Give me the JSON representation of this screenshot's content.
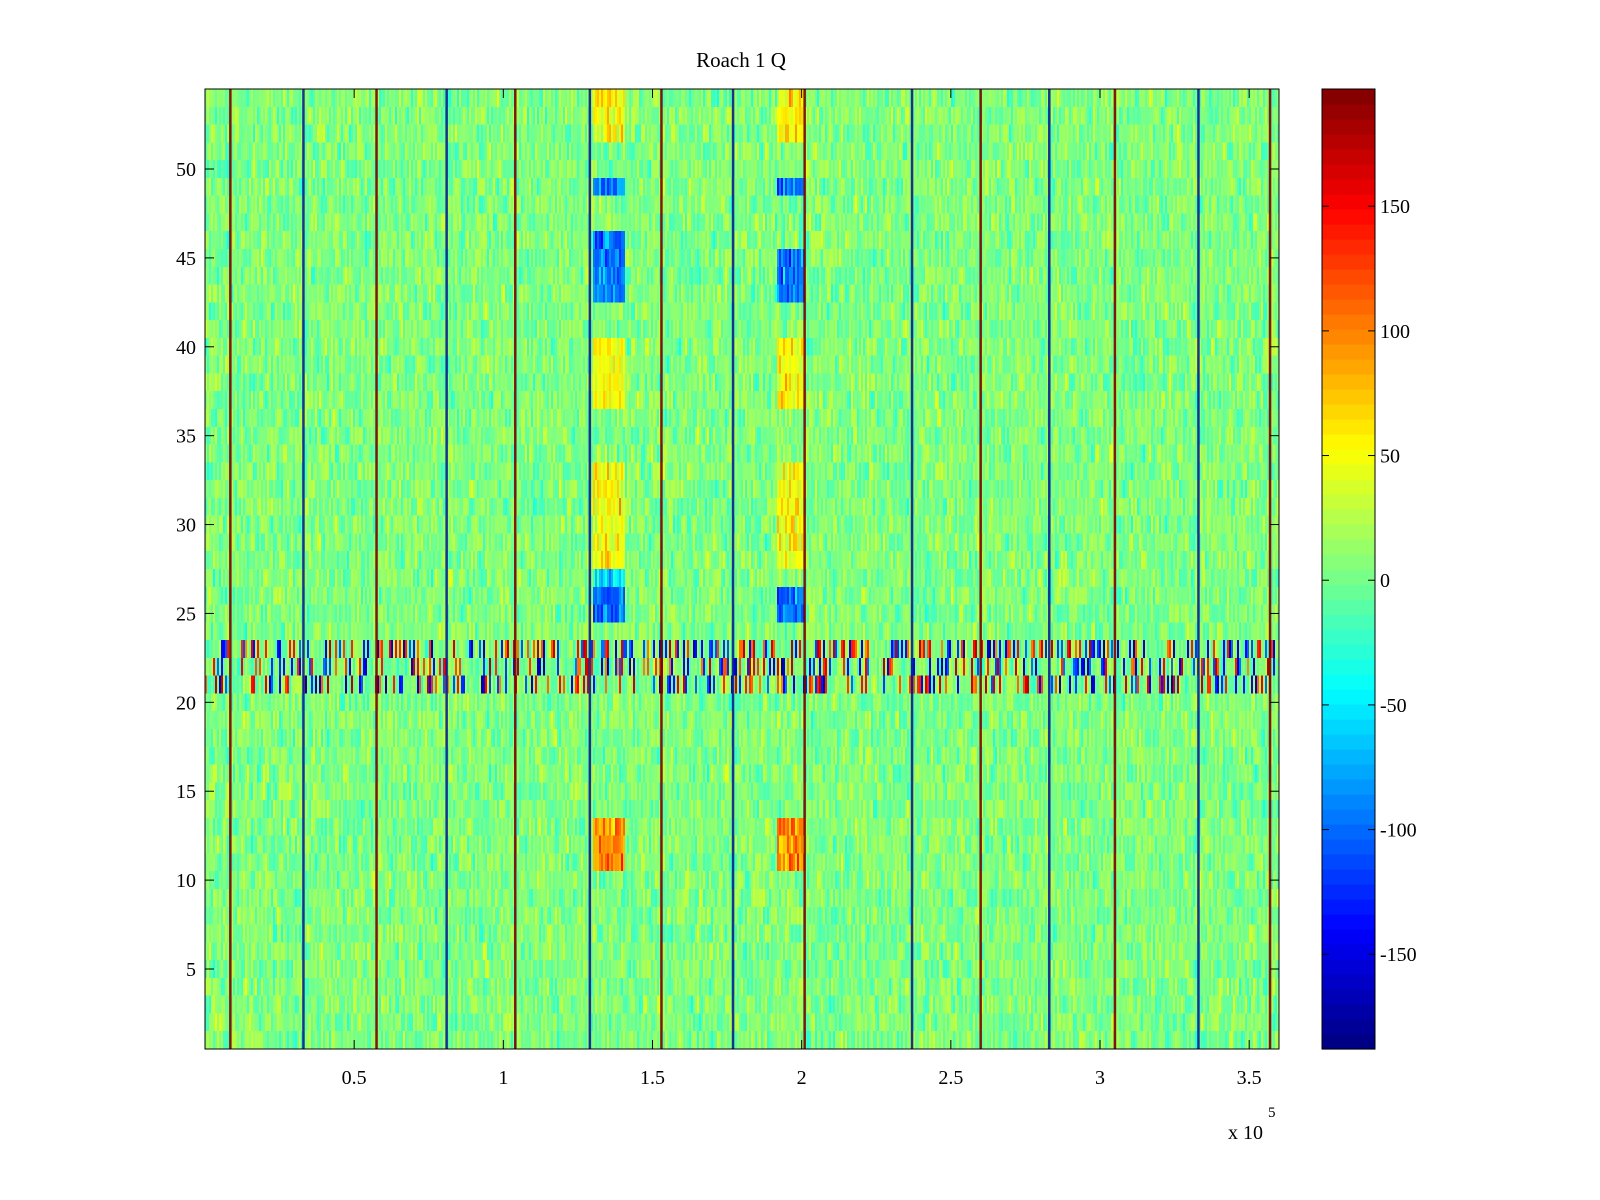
{
  "chart_data": {
    "type": "heatmap",
    "title": "Roach 1 Q",
    "colormap": "jet",
    "xlim": [
      0,
      360000
    ],
    "ylim": [
      0.5,
      54.5
    ],
    "x_multiplier_label": "x 10",
    "x_multiplier_exponent": "5",
    "x_ticks": [
      {
        "value": 50000,
        "label": "0.5"
      },
      {
        "value": 100000,
        "label": "1"
      },
      {
        "value": 150000,
        "label": "1.5"
      },
      {
        "value": 200000,
        "label": "2"
      },
      {
        "value": 250000,
        "label": "2.5"
      },
      {
        "value": 300000,
        "label": "3"
      },
      {
        "value": 350000,
        "label": "3.5"
      }
    ],
    "y_ticks": [
      {
        "value": 5,
        "label": "5"
      },
      {
        "value": 10,
        "label": "10"
      },
      {
        "value": 15,
        "label": "15"
      },
      {
        "value": 20,
        "label": "20"
      },
      {
        "value": 25,
        "label": "25"
      },
      {
        "value": 30,
        "label": "30"
      },
      {
        "value": 35,
        "label": "35"
      },
      {
        "value": 40,
        "label": "40"
      },
      {
        "value": 45,
        "label": "45"
      },
      {
        "value": 50,
        "label": "50"
      }
    ],
    "colorbar": {
      "clim": [
        -188,
        197
      ],
      "ticks": [
        {
          "value": 150,
          "label": "150"
        },
        {
          "value": 100,
          "label": "100"
        },
        {
          "value": 50,
          "label": "50"
        },
        {
          "value": 0,
          "label": "0"
        },
        {
          "value": -50,
          "label": "-50"
        },
        {
          "value": -100,
          "label": "-100"
        },
        {
          "value": -150,
          "label": "-150"
        }
      ]
    },
    "n_rows": 54,
    "background_mean": 5,
    "background_spread": 22,
    "sync_lines_x": [
      8500,
      33000,
      57500,
      81000,
      104000,
      129000,
      153000,
      177000,
      201000,
      237000,
      260000,
      283000,
      305000,
      333000,
      357000
    ],
    "bright_bands": [
      {
        "x_start": 130000,
        "x_end": 141000,
        "rows": [
          1,
          2,
          3,
          4,
          5,
          6,
          7,
          8,
          9,
          10,
          11,
          12,
          13,
          14,
          15,
          16,
          17,
          18,
          19,
          20,
          25,
          26,
          27,
          28,
          29,
          30,
          31,
          32,
          33,
          34,
          35,
          36,
          37,
          38,
          39,
          40,
          41,
          42,
          43,
          44,
          45,
          46,
          47,
          48,
          49,
          50,
          51,
          52,
          53,
          54
        ],
        "yellow_rows": [
          27,
          28,
          29,
          30,
          31,
          32,
          33,
          37,
          38,
          39,
          40,
          52,
          53,
          54
        ],
        "blue_rows": [
          25,
          26,
          27,
          43,
          44,
          45,
          46,
          49
        ],
        "red_rows": [
          11,
          12,
          13
        ]
      },
      {
        "x_start": 192000,
        "x_end": 201000,
        "rows": [
          1,
          2,
          3,
          4,
          5,
          6,
          7,
          8,
          9,
          10,
          11,
          12,
          13,
          14,
          15,
          16,
          17,
          18,
          19,
          20,
          25,
          26,
          27,
          28,
          29,
          30,
          31,
          32,
          33,
          34,
          35,
          36,
          37,
          38,
          39,
          40,
          41,
          42,
          43,
          44,
          45,
          46,
          47,
          48,
          49,
          50,
          51,
          52,
          53,
          54
        ],
        "yellow_rows": [
          28,
          29,
          30,
          31,
          32,
          33,
          37,
          38,
          39,
          40,
          52,
          53,
          54
        ],
        "blue_rows": [
          25,
          26,
          43,
          44,
          45,
          49
        ],
        "red_rows": [
          11,
          12,
          13
        ]
      }
    ],
    "noisy_row_band": {
      "rows": [
        21,
        22,
        23
      ],
      "amplitude": 160
    }
  }
}
